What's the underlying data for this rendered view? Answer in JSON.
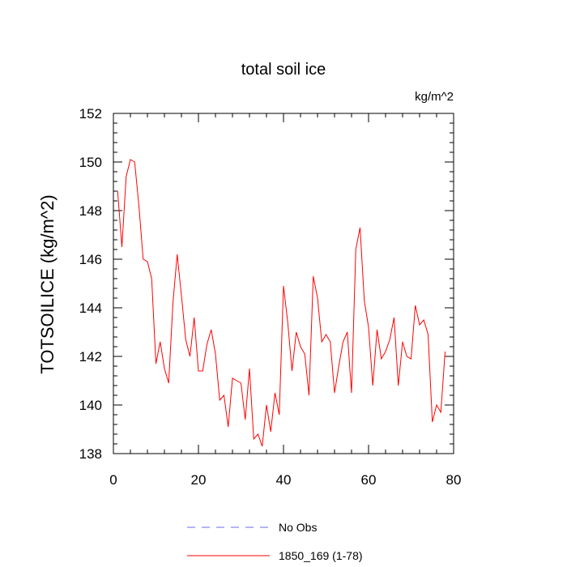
{
  "chart_data": {
    "type": "line",
    "title": "total soil ice",
    "units_label": "kg/m^2",
    "ylabel": "TOTSOILICE  (kg/m^2)",
    "xlabel": "",
    "xlim": [
      0,
      80
    ],
    "ylim": [
      138,
      152
    ],
    "x_ticks": [
      0,
      20,
      40,
      60,
      80
    ],
    "y_ticks": [
      138,
      140,
      142,
      144,
      146,
      148,
      150,
      152
    ],
    "grid": false,
    "legend_placement": "bottom",
    "legend": [
      {
        "label": "No Obs",
        "color": "#6a6af0",
        "dash": true
      },
      {
        "label": "1850_169 (1-78)",
        "color": "#ff0000",
        "dash": false
      }
    ],
    "series": [
      {
        "name": "1850_169 (1-78)",
        "color": "#ff0000",
        "x": [
          1,
          2,
          3,
          4,
          5,
          6,
          7,
          8,
          9,
          10,
          11,
          12,
          13,
          14,
          15,
          16,
          17,
          18,
          19,
          20,
          21,
          22,
          23,
          24,
          25,
          26,
          27,
          28,
          29,
          30,
          31,
          32,
          33,
          34,
          35,
          36,
          37,
          38,
          39,
          40,
          41,
          42,
          43,
          44,
          45,
          46,
          47,
          48,
          49,
          50,
          51,
          52,
          53,
          54,
          55,
          56,
          57,
          58,
          59,
          60,
          61,
          62,
          63,
          64,
          65,
          66,
          67,
          68,
          69,
          70,
          71,
          72,
          73,
          74,
          75,
          76,
          77,
          78
        ],
        "y": [
          148.8,
          146.5,
          149.4,
          150.1,
          150.0,
          148.2,
          146.0,
          145.9,
          145.2,
          141.7,
          142.6,
          141.5,
          140.9,
          144.2,
          146.2,
          144.5,
          142.7,
          142.0,
          143.6,
          141.4,
          141.4,
          142.5,
          143.1,
          142.1,
          140.2,
          140.4,
          139.1,
          141.1,
          141.0,
          140.9,
          139.4,
          141.5,
          138.6,
          138.8,
          138.3,
          140.0,
          138.9,
          140.5,
          139.6,
          144.9,
          143.4,
          141.4,
          143.0,
          142.4,
          142.1,
          140.4,
          145.3,
          144.4,
          142.6,
          142.9,
          142.6,
          140.5,
          141.6,
          142.6,
          143.0,
          140.5,
          146.4,
          147.3,
          144.3,
          143.2,
          140.8,
          143.1,
          141.9,
          142.2,
          142.7,
          143.6,
          140.8,
          142.6,
          142.0,
          141.9,
          144.1,
          143.3,
          143.5,
          142.9,
          139.3,
          140.0,
          139.7,
          142.2
        ]
      }
    ]
  }
}
